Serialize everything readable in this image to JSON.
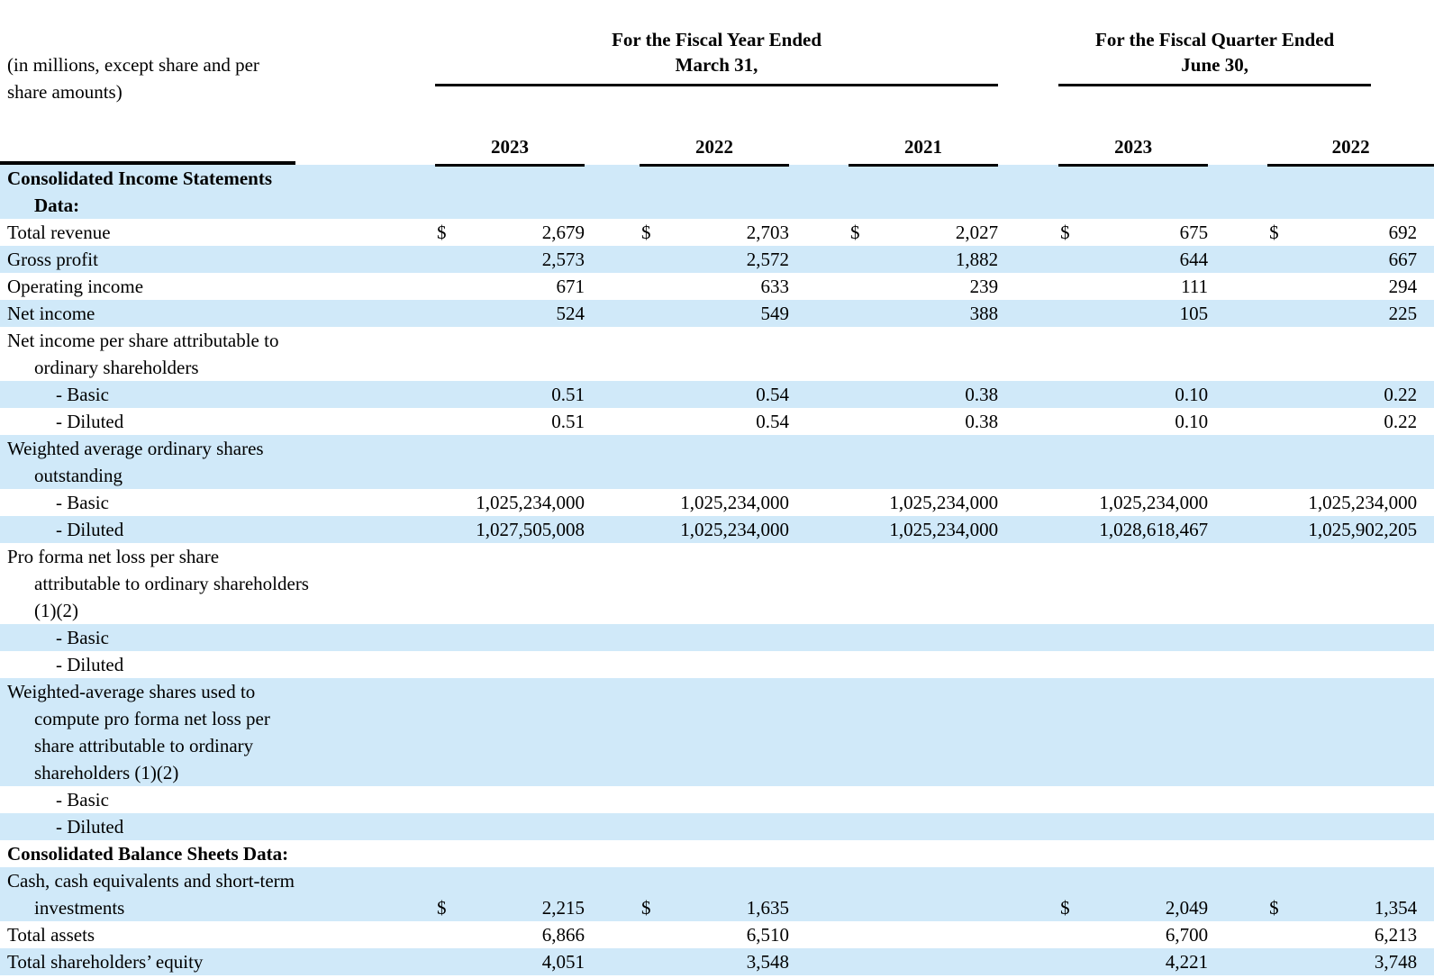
{
  "table": {
    "shade_color": "#d0e9f9",
    "text_color": "#000000",
    "note": "(in millions, except share and per\nshare amounts)",
    "column_groups": [
      {
        "title": "For the Fiscal Year Ended\nMarch 31,",
        "years": [
          "2023",
          "2022",
          "2021"
        ]
      },
      {
        "title": "For the Fiscal Quarter Ended\nJune 30,",
        "years": [
          "2023",
          "2022"
        ]
      }
    ],
    "rows": [
      {
        "label": "Consolidated Income Statements\nData:",
        "variant": "section",
        "shaded": true
      },
      {
        "label": "Total revenue",
        "variant": "normal",
        "shaded": false,
        "dollars": [
          "$",
          "$",
          "$",
          "$",
          "$"
        ],
        "values": [
          "2,679",
          "2,703",
          "2,027",
          "675",
          "692"
        ]
      },
      {
        "label": "Gross profit",
        "variant": "normal",
        "shaded": true,
        "dollars": [
          "",
          "",
          "",
          "",
          ""
        ],
        "values": [
          "2,573",
          "2,572",
          "1,882",
          "644",
          "667"
        ]
      },
      {
        "label": "Operating income",
        "variant": "normal",
        "shaded": false,
        "dollars": [
          "",
          "",
          "",
          "",
          ""
        ],
        "values": [
          "671",
          "633",
          "239",
          "111",
          "294"
        ]
      },
      {
        "label": "Net income",
        "variant": "normal",
        "shaded": true,
        "dollars": [
          "",
          "",
          "",
          "",
          ""
        ],
        "values": [
          "524",
          "549",
          "388",
          "105",
          "225"
        ]
      },
      {
        "label": "Net income per share attributable to\nordinary shareholders",
        "variant": "normal",
        "shaded": false
      },
      {
        "label": "- Basic",
        "variant": "dash",
        "shaded": true,
        "dollars": [
          "",
          "",
          "",
          "",
          ""
        ],
        "values": [
          "0.51",
          "0.54",
          "0.38",
          "0.10",
          "0.22"
        ]
      },
      {
        "label": "- Diluted",
        "variant": "dash",
        "shaded": false,
        "dollars": [
          "",
          "",
          "",
          "",
          ""
        ],
        "values": [
          "0.51",
          "0.54",
          "0.38",
          "0.10",
          "0.22"
        ]
      },
      {
        "label": "Weighted average ordinary shares\noutstanding",
        "variant": "normal",
        "shaded": true
      },
      {
        "label": "- Basic",
        "variant": "dash",
        "shaded": false,
        "dollars": [
          "",
          "",
          "",
          "",
          ""
        ],
        "values": [
          "1,025,234,000",
          "1,025,234,000",
          "1,025,234,000",
          "1,025,234,000",
          "1,025,234,000"
        ]
      },
      {
        "label": "- Diluted",
        "variant": "dash",
        "shaded": true,
        "dollars": [
          "",
          "",
          "",
          "",
          ""
        ],
        "values": [
          "1,027,505,008",
          "1,025,234,000",
          "1,025,234,000",
          "1,028,618,467",
          "1,025,902,205"
        ]
      },
      {
        "label": "Pro forma net loss per share\nattributable to ordinary shareholders\n(1)(2)",
        "variant": "normal",
        "shaded": false
      },
      {
        "label": "- Basic",
        "variant": "dash",
        "shaded": true
      },
      {
        "label": "- Diluted",
        "variant": "dash",
        "shaded": false
      },
      {
        "label": "Weighted-average shares used to\ncompute pro forma net loss per\nshare attributable to ordinary\nshareholders (1)(2)",
        "variant": "normal",
        "shaded": true
      },
      {
        "label": "- Basic",
        "variant": "dash",
        "shaded": false
      },
      {
        "label": "- Diluted",
        "variant": "dash",
        "shaded": true
      },
      {
        "label": "Consolidated Balance Sheets Data:",
        "variant": "section",
        "shaded": false
      },
      {
        "label": "Cash, cash equivalents and short-term\ninvestments",
        "variant": "normal",
        "shaded": true,
        "dollars": [
          "$",
          "$",
          "",
          "$",
          "$"
        ],
        "values": [
          "2,215",
          "1,635",
          "",
          "2,049",
          "1,354"
        ]
      },
      {
        "label": "Total assets",
        "variant": "normal",
        "shaded": false,
        "dollars": [
          "",
          "",
          "",
          "",
          ""
        ],
        "values": [
          "6,866",
          "6,510",
          "",
          "6,700",
          "6,213"
        ]
      },
      {
        "label": "Total shareholders’ equity",
        "variant": "normal",
        "shaded": true,
        "dollars": [
          "",
          "",
          "",
          "",
          ""
        ],
        "values": [
          "4,051",
          "3,548",
          "",
          "4,221",
          "3,748"
        ]
      }
    ]
  }
}
